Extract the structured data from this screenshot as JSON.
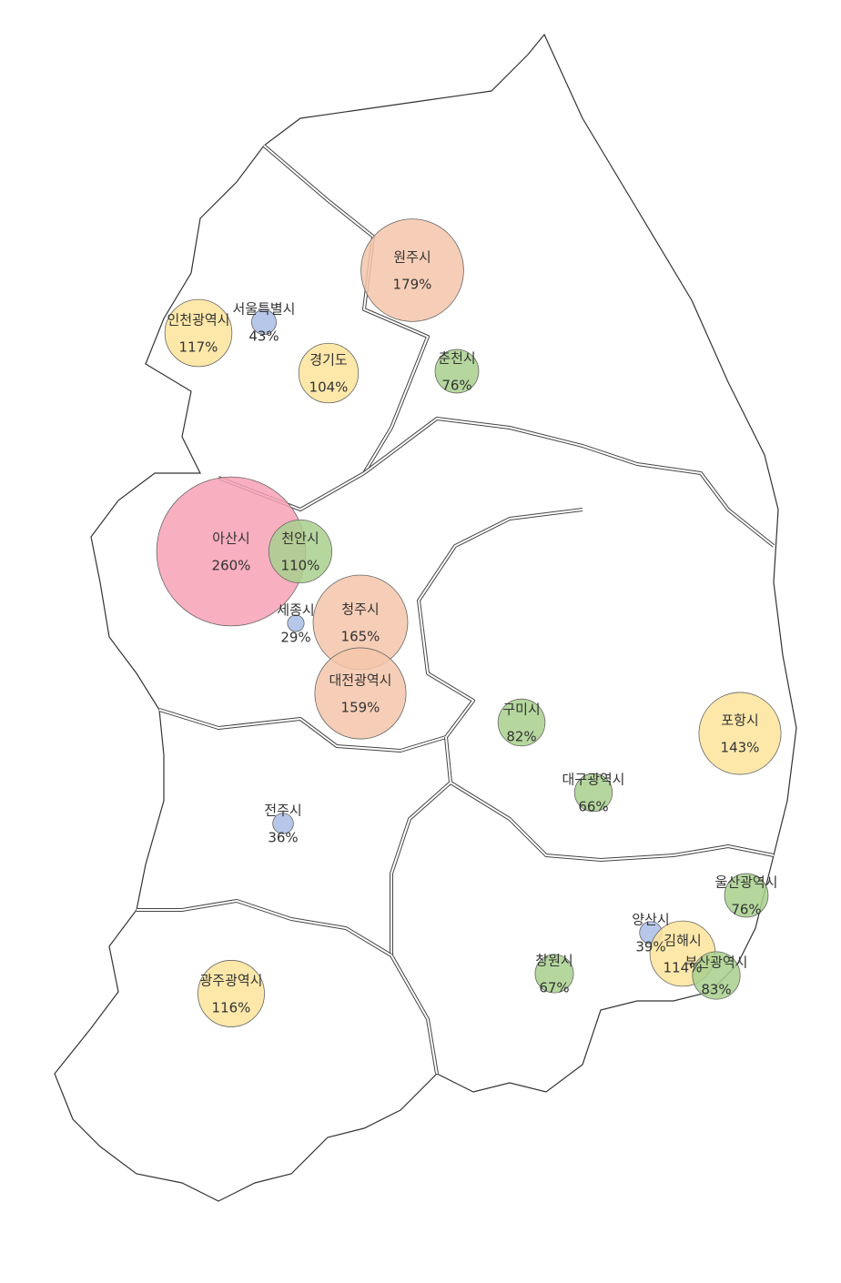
{
  "map": {
    "regions": [
      {
        "name": "원주시",
        "value": 179,
        "label": "179%",
        "color": "#f5c6aa"
      },
      {
        "name": "인천광역시",
        "value": 117,
        "label": "117%",
        "color": "#fde49b"
      },
      {
        "name": "서울특별시",
        "value": 43,
        "label": "43%",
        "color": "#a9bde6"
      },
      {
        "name": "경기도",
        "value": 104,
        "label": "104%",
        "color": "#fde49b"
      },
      {
        "name": "춘천시",
        "value": 76,
        "label": "76%",
        "color": "#a8d08d"
      },
      {
        "name": "아산시",
        "value": 260,
        "label": "260%",
        "color": "#f7a1b5"
      },
      {
        "name": "천안시",
        "value": 110,
        "label": "110%",
        "color": "#a8d08d"
      },
      {
        "name": "청주시",
        "value": 165,
        "label": "165%",
        "color": "#f5c6aa"
      },
      {
        "name": "세종시",
        "value": 29,
        "label": "29%",
        "color": "#a9bde6"
      },
      {
        "name": "대전광역시",
        "value": 159,
        "label": "159%",
        "color": "#f5c6aa"
      },
      {
        "name": "구미시",
        "value": 82,
        "label": "82%",
        "color": "#a8d08d"
      },
      {
        "name": "포항시",
        "value": 143,
        "label": "143%",
        "color": "#fde49b"
      },
      {
        "name": "대구광역시",
        "value": 66,
        "label": "66%",
        "color": "#a8d08d"
      },
      {
        "name": "전주시",
        "value": 36,
        "label": "36%",
        "color": "#a9bde6"
      },
      {
        "name": "울산광역시",
        "value": 76,
        "label": "76%",
        "color": "#a8d08d"
      },
      {
        "name": "양산시",
        "value": 39,
        "label": "39%",
        "color": "#a9bde6"
      },
      {
        "name": "김해시",
        "value": 114,
        "label": "114%",
        "color": "#fde49b"
      },
      {
        "name": "부산광역시",
        "value": 83,
        "label": "83%",
        "color": "#a8d08d"
      },
      {
        "name": "창원시",
        "value": 67,
        "label": "67%",
        "color": "#a8d08d"
      },
      {
        "name": "광주광역시",
        "value": 116,
        "label": "116%",
        "color": "#fde49b"
      }
    ]
  }
}
